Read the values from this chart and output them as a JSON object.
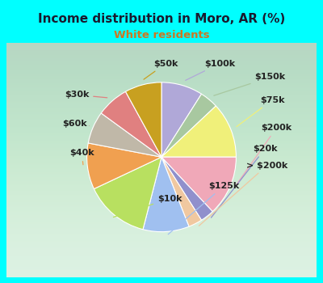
{
  "title": "Income distribution in Moro, AR (%)",
  "subtitle": "White residents",
  "title_color": "#1a1a2e",
  "subtitle_color": "#cc7722",
  "background_color": "#00ffff",
  "chart_bg_gradient": true,
  "labels": [
    "$100k",
    "$150k",
    "$75k",
    "$200k",
    "$20k",
    "> $200k",
    "$125k",
    "$10k",
    "$40k",
    "$60k",
    "$30k",
    "$50k"
  ],
  "sizes": [
    9,
    4,
    12,
    13,
    3,
    3,
    10,
    14,
    10,
    7,
    7,
    8
  ],
  "colors": [
    "#b0a8d8",
    "#a8c8a0",
    "#f0f07a",
    "#f0a8b8",
    "#9090cc",
    "#f0c8a0",
    "#a0c0f0",
    "#b8e060",
    "#f0a050",
    "#c0b8a8",
    "#e08080",
    "#c8a020"
  ],
  "label_fontsize": 8,
  "label_color": "#222222"
}
